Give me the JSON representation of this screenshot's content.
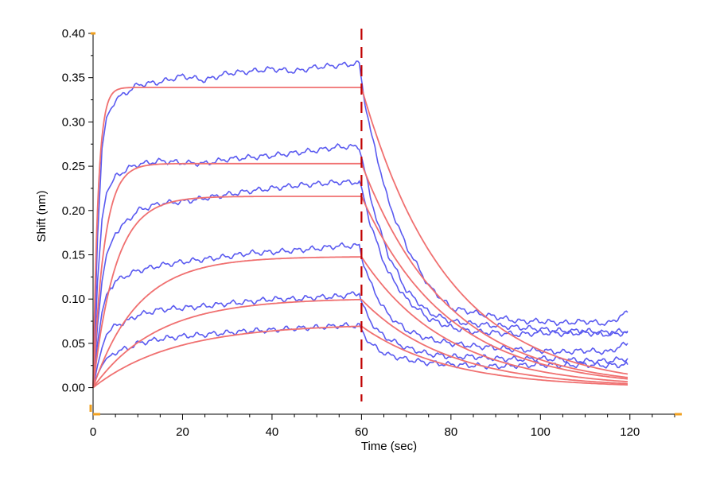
{
  "chart_data": {
    "type": "line",
    "xlabel": "Time (sec)",
    "ylabel": "Shift (nm)",
    "xlim": [
      0,
      130
    ],
    "ylim": [
      -0.03,
      0.4
    ],
    "x_ticks": [
      0,
      20,
      40,
      60,
      80,
      100,
      120
    ],
    "y_ticks": [
      0.0,
      0.05,
      0.1,
      0.15,
      0.2,
      0.25,
      0.3,
      0.35,
      0.4
    ],
    "y_tick_labels": [
      "0.00",
      "0.05",
      "0.10",
      "0.15",
      "0.20",
      "0.25",
      "0.30",
      "0.35",
      "0.40"
    ],
    "grid": false,
    "legend": "none",
    "marker_line": {
      "x": 60,
      "color": "#c00000",
      "style": "dashed"
    },
    "colors": {
      "measured": "#5a5af0",
      "fit": "#f07070"
    },
    "series": [
      {
        "kind": "measured",
        "x": [
          0,
          1,
          2,
          3,
          5,
          8,
          10,
          15,
          20,
          25,
          30,
          35,
          40,
          45,
          50,
          55,
          59.5,
          60.5,
          62,
          64,
          66,
          70,
          75,
          80,
          85,
          90,
          95,
          100,
          105,
          110,
          115,
          119.5
        ],
        "y": [
          0.0,
          0.17,
          0.27,
          0.305,
          0.325,
          0.335,
          0.342,
          0.345,
          0.352,
          0.347,
          0.355,
          0.357,
          0.36,
          0.357,
          0.362,
          0.364,
          0.366,
          0.33,
          0.29,
          0.25,
          0.21,
          0.16,
          0.115,
          0.09,
          0.085,
          0.08,
          0.075,
          0.075,
          0.073,
          0.075,
          0.072,
          0.085
        ]
      },
      {
        "kind": "measured",
        "x": [
          0,
          1,
          2,
          3,
          5,
          8,
          10,
          15,
          20,
          25,
          30,
          35,
          40,
          45,
          50,
          55,
          59.5,
          60.5,
          62,
          64,
          66,
          70,
          75,
          80,
          85,
          90,
          95,
          100,
          105,
          110,
          115,
          119.5
        ],
        "y": [
          0.0,
          0.12,
          0.19,
          0.22,
          0.238,
          0.248,
          0.252,
          0.256,
          0.254,
          0.253,
          0.258,
          0.26,
          0.262,
          0.265,
          0.268,
          0.272,
          0.272,
          0.25,
          0.215,
          0.18,
          0.15,
          0.11,
          0.085,
          0.075,
          0.072,
          0.07,
          0.068,
          0.066,
          0.064,
          0.064,
          0.062,
          0.064
        ]
      },
      {
        "kind": "measured",
        "x": [
          0,
          1,
          2,
          3,
          5,
          8,
          10,
          15,
          20,
          25,
          30,
          35,
          40,
          45,
          50,
          55,
          59.5,
          60.5,
          62,
          64,
          66,
          70,
          75,
          80,
          85,
          90,
          95,
          100,
          105,
          110,
          115,
          119.5
        ],
        "y": [
          0.0,
          0.07,
          0.12,
          0.15,
          0.175,
          0.19,
          0.2,
          0.208,
          0.21,
          0.214,
          0.218,
          0.222,
          0.225,
          0.228,
          0.23,
          0.232,
          0.232,
          0.215,
          0.185,
          0.155,
          0.13,
          0.1,
          0.078,
          0.068,
          0.063,
          0.062,
          0.06,
          0.062,
          0.061,
          0.062,
          0.06,
          0.062
        ]
      },
      {
        "kind": "measured",
        "x": [
          0,
          1,
          2,
          3,
          5,
          8,
          10,
          15,
          20,
          25,
          30,
          35,
          40,
          45,
          50,
          55,
          59.5,
          60.5,
          62,
          64,
          66,
          70,
          75,
          80,
          85,
          90,
          95,
          100,
          105,
          110,
          115,
          119.5
        ],
        "y": [
          0.0,
          0.05,
          0.085,
          0.105,
          0.12,
          0.128,
          0.132,
          0.138,
          0.142,
          0.145,
          0.148,
          0.152,
          0.153,
          0.155,
          0.157,
          0.16,
          0.16,
          0.14,
          0.118,
          0.098,
          0.082,
          0.065,
          0.055,
          0.05,
          0.047,
          0.045,
          0.043,
          0.042,
          0.04,
          0.042,
          0.04,
          0.05
        ]
      },
      {
        "kind": "measured",
        "x": [
          0,
          1,
          2,
          3,
          5,
          8,
          10,
          15,
          20,
          25,
          30,
          35,
          40,
          45,
          50,
          55,
          59.5,
          60.5,
          62,
          64,
          66,
          70,
          75,
          80,
          85,
          90,
          95,
          100,
          105,
          110,
          115,
          119.5
        ],
        "y": [
          0.0,
          0.025,
          0.045,
          0.06,
          0.07,
          0.076,
          0.082,
          0.088,
          0.09,
          0.092,
          0.095,
          0.097,
          0.1,
          0.1,
          0.102,
          0.103,
          0.107,
          0.09,
          0.075,
          0.062,
          0.055,
          0.045,
          0.038,
          0.035,
          0.035,
          0.033,
          0.032,
          0.033,
          0.032,
          0.03,
          0.03,
          0.033
        ]
      },
      {
        "kind": "measured",
        "x": [
          0,
          1,
          2,
          3,
          5,
          8,
          10,
          15,
          20,
          25,
          30,
          35,
          40,
          45,
          50,
          55,
          59.5,
          60.5,
          62,
          64,
          66,
          70,
          75,
          80,
          85,
          90,
          95,
          100,
          105,
          110,
          115,
          119.5
        ],
        "y": [
          0.0,
          0.015,
          0.025,
          0.033,
          0.04,
          0.045,
          0.05,
          0.055,
          0.058,
          0.06,
          0.062,
          0.064,
          0.065,
          0.067,
          0.068,
          0.07,
          0.07,
          0.06,
          0.05,
          0.042,
          0.037,
          0.032,
          0.028,
          0.026,
          0.025,
          0.024,
          0.025,
          0.026,
          0.025,
          0.026,
          0.025,
          0.026
        ]
      },
      {
        "kind": "fit",
        "rmax": 0.339,
        "kon": 0.9,
        "koff": 0.052
      },
      {
        "kind": "fit",
        "rmax": 0.253,
        "kon": 0.4,
        "koff": 0.052
      },
      {
        "kind": "fit",
        "rmax": 0.216,
        "kon": 0.2,
        "koff": 0.052
      },
      {
        "kind": "fit",
        "rmax": 0.148,
        "kon": 0.1,
        "koff": 0.052
      },
      {
        "kind": "fit",
        "rmax": 0.101,
        "kon": 0.07,
        "koff": 0.052
      },
      {
        "kind": "fit",
        "rmax": 0.072,
        "kon": 0.055,
        "koff": 0.052
      }
    ]
  }
}
